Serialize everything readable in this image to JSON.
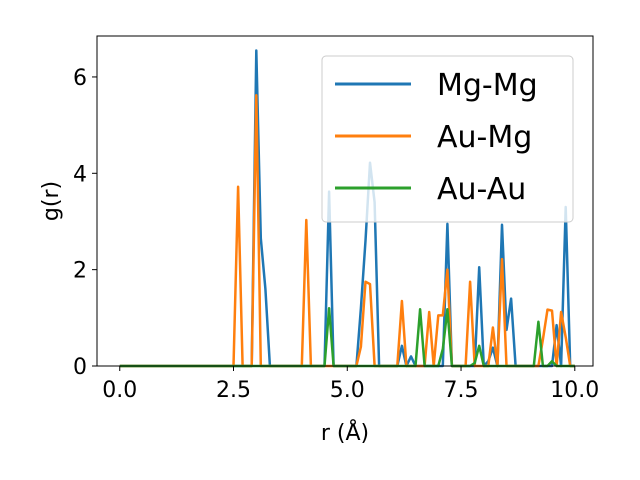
{
  "chart_data": {
    "type": "line",
    "xlabel": "r (Å)",
    "ylabel": "g(r)",
    "xlim": [
      -0.5,
      10.4
    ],
    "ylim": [
      0,
      6.85
    ],
    "xticks": [
      "0.0",
      "2.5",
      "5.0",
      "7.5",
      "10.0"
    ],
    "yticks": [
      "0",
      "2",
      "4",
      "6"
    ],
    "grid": false,
    "legend_position": "top-right",
    "series": [
      {
        "name": "Mg-Mg",
        "color": "#1f77b4",
        "x": [
          0.0,
          2.9,
          3.0,
          3.1,
          3.2,
          3.3,
          4.5,
          4.6,
          4.7,
          5.2,
          5.3,
          5.4,
          5.5,
          5.6,
          5.7,
          6.1,
          6.2,
          6.3,
          6.4,
          6.5,
          7.1,
          7.2,
          7.3,
          7.8,
          7.9,
          8.0,
          8.1,
          8.2,
          8.3,
          8.4,
          8.5,
          8.6,
          8.7,
          9.5,
          9.6,
          9.7,
          9.8,
          9.9,
          10.0
        ],
        "y": [
          0,
          0,
          6.55,
          2.65,
          1.6,
          0,
          0,
          3.62,
          0,
          0,
          1.2,
          2.6,
          4.22,
          3.4,
          0,
          0,
          0.42,
          0,
          0.2,
          0,
          0,
          2.95,
          0,
          0,
          2.05,
          0,
          0.1,
          0.38,
          0,
          2.93,
          0.75,
          1.4,
          0,
          0,
          0.85,
          0,
          3.3,
          0,
          0
        ]
      },
      {
        "name": "Au-Mg",
        "color": "#ff7f0e",
        "x": [
          0.0,
          2.5,
          2.6,
          2.7,
          2.9,
          3.0,
          3.1,
          4.0,
          4.1,
          4.2,
          5.2,
          5.3,
          5.4,
          5.5,
          5.6,
          6.1,
          6.2,
          6.3,
          6.7,
          6.8,
          6.9,
          7.0,
          7.1,
          7.2,
          7.3,
          7.6,
          7.7,
          7.8,
          8.1,
          8.2,
          8.3,
          8.4,
          8.5,
          9.2,
          9.3,
          9.4,
          9.5,
          9.6,
          9.7,
          9.8,
          9.9,
          10.0
        ],
        "y": [
          0,
          0,
          3.72,
          0,
          0,
          5.62,
          0,
          0,
          3.03,
          0,
          0,
          0.4,
          1.75,
          1.7,
          0,
          0,
          1.35,
          0,
          0,
          1.12,
          0,
          1.05,
          1.05,
          2.0,
          0,
          0,
          1.75,
          0,
          0,
          0.8,
          0,
          2.22,
          0,
          0,
          0.55,
          1.17,
          1.15,
          0,
          1.12,
          0.6,
          0,
          0
        ]
      },
      {
        "name": "Au-Au",
        "color": "#2ca02c",
        "x": [
          0.0,
          4.5,
          4.6,
          4.7,
          6.5,
          6.6,
          6.7,
          7.0,
          7.1,
          7.2,
          7.3,
          7.7,
          7.8,
          7.9,
          8.0,
          9.1,
          9.2,
          9.3,
          9.4,
          9.5,
          9.6,
          10.0
        ],
        "y": [
          0,
          0,
          1.2,
          0,
          0,
          1.18,
          0,
          0,
          0.35,
          1.18,
          0,
          0,
          0.06,
          0.42,
          0,
          0,
          0.92,
          0,
          0,
          0.1,
          0,
          0
        ]
      }
    ]
  }
}
